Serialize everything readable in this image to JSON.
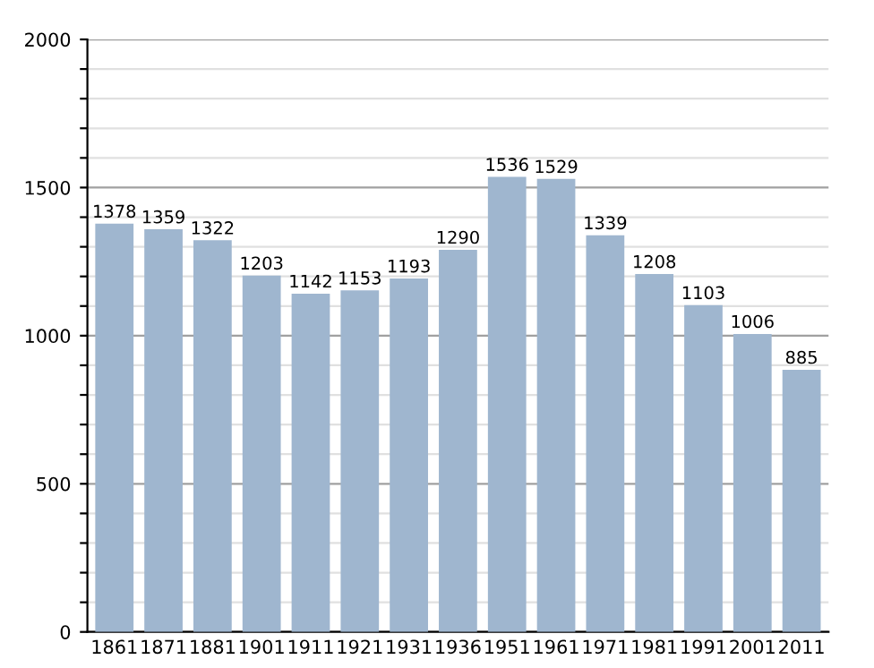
{
  "chart_data": {
    "type": "bar",
    "categories": [
      "1861",
      "1871",
      "1881",
      "1901",
      "1911",
      "1921",
      "1931",
      "1936",
      "1951",
      "1961",
      "1971",
      "1981",
      "1991",
      "2001",
      "2011"
    ],
    "values": [
      1378,
      1359,
      1322,
      1203,
      1142,
      1153,
      1193,
      1290,
      1536,
      1529,
      1339,
      1208,
      1103,
      1006,
      885
    ],
    "color": "#9fb6cf",
    "ylim": [
      0,
      2000
    ],
    "yticks": [
      0,
      {
        "value": 100,
        "label": null
      },
      {
        "value": 200,
        "label": null
      },
      {
        "value": 300,
        "label": null
      },
      {
        "value": 400,
        "label": null
      },
      500,
      {
        "value": 600,
        "label": null
      },
      {
        "value": 700,
        "label": null
      },
      {
        "value": 800,
        "label": null
      },
      {
        "value": 900,
        "label": null
      },
      1000,
      {
        "value": 1100,
        "label": null
      },
      {
        "value": 1200,
        "label": null
      },
      {
        "value": 1300,
        "label": null
      },
      {
        "value": 1400,
        "label": null
      },
      1500,
      {
        "value": 1600,
        "label": null
      },
      {
        "value": 1700,
        "label": null
      },
      {
        "value": 1800,
        "label": null
      },
      {
        "value": 1900,
        "label": null
      },
      2000
    ],
    "grid": "y",
    "data_labels": true
  }
}
